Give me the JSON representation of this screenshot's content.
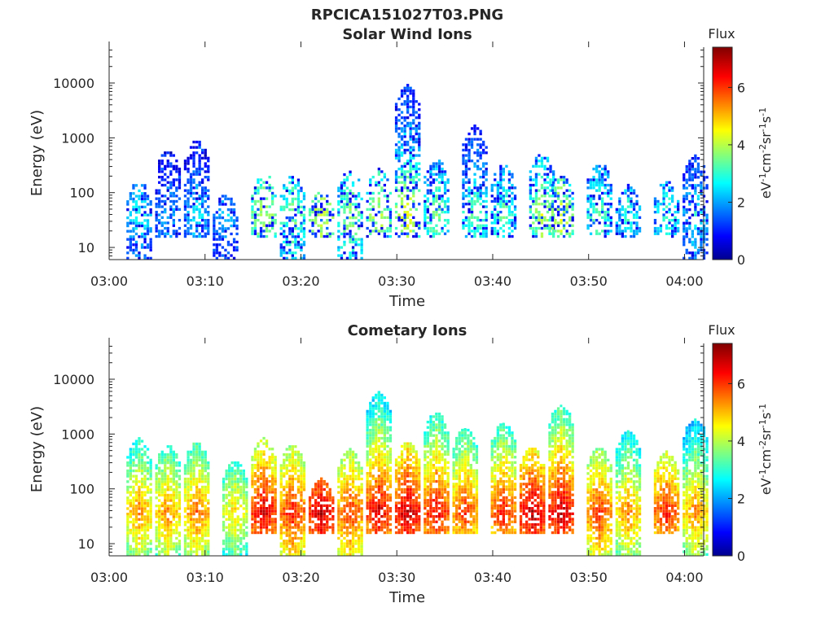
{
  "figure": {
    "title": "RPCICA151027T03.PNG"
  },
  "chart_data": [
    {
      "type": "heatmap",
      "title": "Solar Wind Ions",
      "xlabel": "Time",
      "ylabel": "Energy (eV)",
      "x_ticks": [
        "03:00",
        "03:10",
        "03:20",
        "03:30",
        "03:40",
        "03:50",
        "04:00"
      ],
      "x_range": [
        "03:00",
        "04:02"
      ],
      "y_scale": "log",
      "y_ticks": [
        10,
        100,
        1000,
        10000
      ],
      "y_range": [
        6,
        45000
      ],
      "colorbar": {
        "title": "Flux",
        "label": "eV-1cm-2sr-1s-1",
        "ticks": [
          0,
          2,
          4,
          6
        ],
        "range": [
          0,
          7.4
        ],
        "colormap": "jet"
      },
      "bursts": [
        {
          "t": "03:03",
          "e_low": 6,
          "e_high": 150,
          "peak": 3.0
        },
        {
          "t": "03:06",
          "e_low": 15,
          "e_high": 550,
          "peak": 2.5
        },
        {
          "t": "03:09",
          "e_low": 15,
          "e_high": 900,
          "peak": 2.8
        },
        {
          "t": "03:12",
          "e_low": 6,
          "e_high": 90,
          "peak": 2.5
        },
        {
          "t": "03:16",
          "e_low": 15,
          "e_high": 230,
          "peak": 4.2
        },
        {
          "t": "03:19",
          "e_low": 6,
          "e_high": 200,
          "peak": 3.8
        },
        {
          "t": "03:22",
          "e_low": 15,
          "e_high": 100,
          "peak": 4.4
        },
        {
          "t": "03:25",
          "e_low": 6,
          "e_high": 250,
          "peak": 4.0
        },
        {
          "t": "03:28",
          "e_low": 15,
          "e_high": 260,
          "peak": 4.2
        },
        {
          "t": "03:31",
          "e_low": 15,
          "e_high": 9000,
          "peak": 4.6
        },
        {
          "t": "03:34",
          "e_low": 15,
          "e_high": 400,
          "peak": 3.8
        },
        {
          "t": "03:38",
          "e_low": 15,
          "e_high": 1600,
          "peak": 3.6
        },
        {
          "t": "03:41",
          "e_low": 15,
          "e_high": 300,
          "peak": 3.6
        },
        {
          "t": "03:45",
          "e_low": 15,
          "e_high": 500,
          "peak": 4.2
        },
        {
          "t": "03:47",
          "e_low": 15,
          "e_high": 200,
          "peak": 4.4
        },
        {
          "t": "03:51",
          "e_low": 15,
          "e_high": 350,
          "peak": 3.6
        },
        {
          "t": "03:54",
          "e_low": 15,
          "e_high": 130,
          "peak": 3.2
        },
        {
          "t": "03:58",
          "e_low": 15,
          "e_high": 160,
          "peak": 3.4
        },
        {
          "t": "04:01",
          "e_low": 6,
          "e_high": 450,
          "peak": 3.0
        }
      ]
    },
    {
      "type": "heatmap",
      "title": "Cometary Ions",
      "xlabel": "Time",
      "ylabel": "Energy (eV)",
      "x_ticks": [
        "03:00",
        "03:10",
        "03:20",
        "03:30",
        "03:40",
        "03:50",
        "04:00"
      ],
      "x_range": [
        "03:00",
        "04:02"
      ],
      "y_scale": "log",
      "y_ticks": [
        10,
        100,
        1000,
        10000
      ],
      "y_range": [
        6,
        45000
      ],
      "colorbar": {
        "title": "Flux",
        "label": "eV-1cm-2sr-1s-1",
        "ticks": [
          0,
          2,
          4,
          6
        ],
        "range": [
          0,
          7.4
        ],
        "colormap": "jet"
      },
      "bursts": [
        {
          "t": "03:03",
          "e_low": 6,
          "e_high": 800,
          "peak": 5.6
        },
        {
          "t": "03:06",
          "e_low": 6,
          "e_high": 600,
          "peak": 5.6
        },
        {
          "t": "03:09",
          "e_low": 6,
          "e_high": 650,
          "peak": 5.8
        },
        {
          "t": "03:13",
          "e_low": 6,
          "e_high": 300,
          "peak": 5.0
        },
        {
          "t": "03:16",
          "e_low": 15,
          "e_high": 800,
          "peak": 6.8
        },
        {
          "t": "03:19",
          "e_low": 6,
          "e_high": 600,
          "peak": 6.4
        },
        {
          "t": "03:22",
          "e_low": 15,
          "e_high": 150,
          "peak": 7.0
        },
        {
          "t": "03:25",
          "e_low": 6,
          "e_high": 500,
          "peak": 6.2
        },
        {
          "t": "03:28",
          "e_low": 15,
          "e_high": 5500,
          "peak": 6.8
        },
        {
          "t": "03:31",
          "e_low": 15,
          "e_high": 700,
          "peak": 7.0
        },
        {
          "t": "03:34",
          "e_low": 15,
          "e_high": 2300,
          "peak": 6.6
        },
        {
          "t": "03:37",
          "e_low": 15,
          "e_high": 1200,
          "peak": 6.2
        },
        {
          "t": "03:41",
          "e_low": 15,
          "e_high": 1500,
          "peak": 6.4
        },
        {
          "t": "03:44",
          "e_low": 15,
          "e_high": 550,
          "peak": 7.0
        },
        {
          "t": "03:47",
          "e_low": 15,
          "e_high": 3200,
          "peak": 7.0
        },
        {
          "t": "03:51",
          "e_low": 6,
          "e_high": 550,
          "peak": 6.2
        },
        {
          "t": "03:54",
          "e_low": 6,
          "e_high": 1100,
          "peak": 5.6
        },
        {
          "t": "03:58",
          "e_low": 15,
          "e_high": 450,
          "peak": 6.4
        },
        {
          "t": "04:01",
          "e_low": 6,
          "e_high": 1800,
          "peak": 5.6
        }
      ]
    }
  ]
}
